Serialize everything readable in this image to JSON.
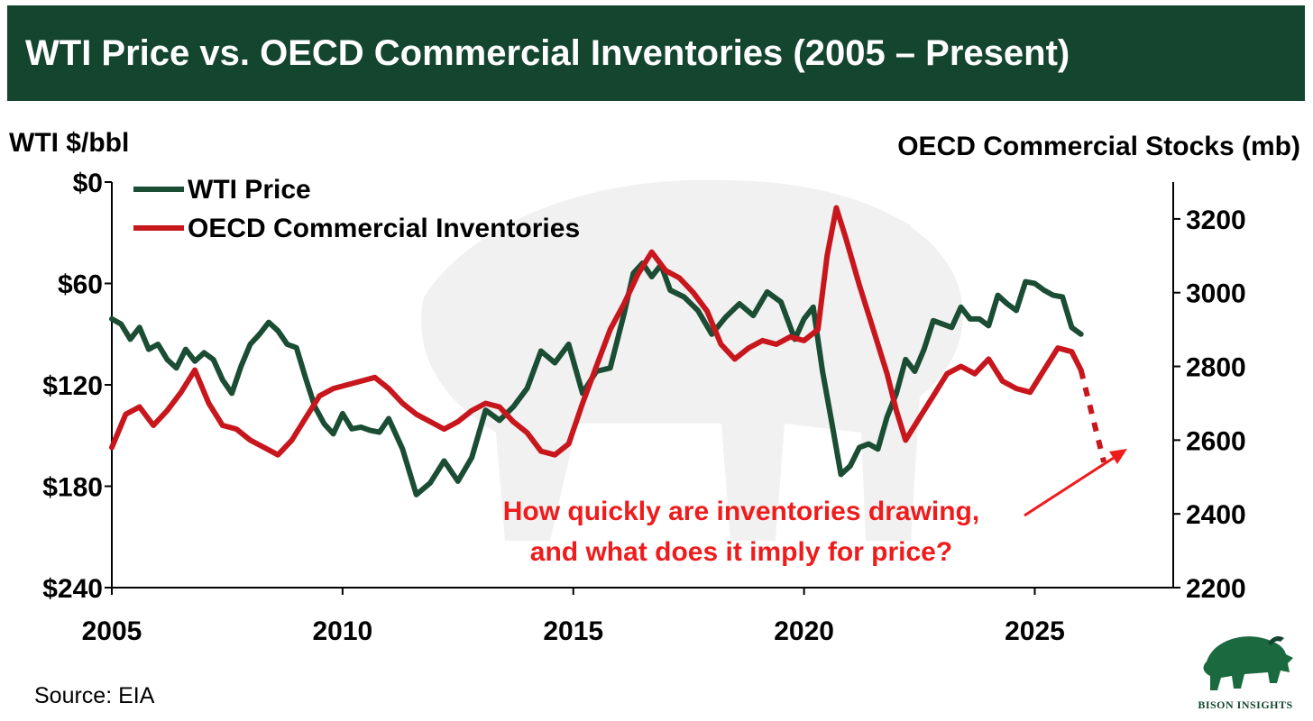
{
  "title": "WTI Price vs. OECD Commercial Inventories (2005 – Present)",
  "source": "Source: EIA",
  "logo_text": "BISON INSIGHTS",
  "colors": {
    "title_bg": "#14452f",
    "wti": "#1a4d34",
    "oecd": "#c8161d",
    "annotation": "#ee1c1c"
  },
  "chart_data": {
    "type": "line",
    "title": "WTI Price vs. OECD Commercial Inventories (2005 – Present)",
    "left_axis": {
      "label": "WTI $/bbl",
      "ticks": [
        "$0",
        "$60",
        "$120",
        "$180",
        "$240"
      ],
      "range": [
        240,
        0
      ],
      "inverted": true
    },
    "right_axis": {
      "label": "OECD Commercial Stocks (mb)",
      "ticks": [
        "2200",
        "2400",
        "2600",
        "2800",
        "3000",
        "3200"
      ],
      "range": [
        2200,
        3300
      ]
    },
    "x_axis": {
      "ticks": [
        "2005",
        "2010",
        "2015",
        "2020",
        "2025"
      ],
      "range": [
        2005,
        2028
      ]
    },
    "legend": {
      "placement": "top-left"
    },
    "series": [
      {
        "name": "WTI Price",
        "axis": "left",
        "points": [
          [
            2005.0,
            81
          ],
          [
            2005.2,
            84
          ],
          [
            2005.4,
            93
          ],
          [
            2005.6,
            86
          ],
          [
            2005.8,
            99
          ],
          [
            2006.0,
            96
          ],
          [
            2006.2,
            105
          ],
          [
            2006.4,
            110
          ],
          [
            2006.6,
            99
          ],
          [
            2006.8,
            106
          ],
          [
            2007.0,
            101
          ],
          [
            2007.2,
            105
          ],
          [
            2007.4,
            117
          ],
          [
            2007.6,
            125
          ],
          [
            2007.8,
            109
          ],
          [
            2008.0,
            96
          ],
          [
            2008.2,
            90
          ],
          [
            2008.4,
            83
          ],
          [
            2008.6,
            88
          ],
          [
            2008.8,
            96
          ],
          [
            2009.0,
            98
          ],
          [
            2009.2,
            116
          ],
          [
            2009.4,
            133
          ],
          [
            2009.6,
            143
          ],
          [
            2009.8,
            149
          ],
          [
            2010.0,
            137
          ],
          [
            2010.2,
            146
          ],
          [
            2010.4,
            145
          ],
          [
            2010.6,
            147
          ],
          [
            2010.8,
            148
          ],
          [
            2011.0,
            140
          ],
          [
            2011.3,
            158
          ],
          [
            2011.6,
            185
          ],
          [
            2011.9,
            178
          ],
          [
            2012.2,
            165
          ],
          [
            2012.5,
            177
          ],
          [
            2012.8,
            163
          ],
          [
            2013.1,
            135
          ],
          [
            2013.4,
            141
          ],
          [
            2013.7,
            133
          ],
          [
            2014.0,
            122
          ],
          [
            2014.3,
            100
          ],
          [
            2014.6,
            107
          ],
          [
            2014.9,
            96
          ],
          [
            2015.2,
            125
          ],
          [
            2015.5,
            112
          ],
          [
            2015.8,
            110
          ],
          [
            2016.1,
            78
          ],
          [
            2016.3,
            54
          ],
          [
            2016.5,
            48
          ],
          [
            2016.7,
            56
          ],
          [
            2016.9,
            49
          ],
          [
            2017.1,
            64
          ],
          [
            2017.4,
            68
          ],
          [
            2017.7,
            76
          ],
          [
            2018.0,
            90
          ],
          [
            2018.3,
            80
          ],
          [
            2018.6,
            72
          ],
          [
            2018.9,
            79
          ],
          [
            2019.2,
            65
          ],
          [
            2019.5,
            71
          ],
          [
            2019.8,
            93
          ],
          [
            2020.0,
            81
          ],
          [
            2020.2,
            74
          ],
          [
            2020.4,
            112
          ],
          [
            2020.6,
            142
          ],
          [
            2020.8,
            173
          ],
          [
            2021.0,
            168
          ],
          [
            2021.2,
            157
          ],
          [
            2021.4,
            155
          ],
          [
            2021.6,
            158
          ],
          [
            2021.8,
            139
          ],
          [
            2022.0,
            125
          ],
          [
            2022.2,
            105
          ],
          [
            2022.4,
            112
          ],
          [
            2022.6,
            99
          ],
          [
            2022.8,
            82
          ],
          [
            2023.0,
            84
          ],
          [
            2023.2,
            86
          ],
          [
            2023.4,
            74
          ],
          [
            2023.6,
            81
          ],
          [
            2023.8,
            81
          ],
          [
            2024.0,
            85
          ],
          [
            2024.2,
            67
          ],
          [
            2024.4,
            72
          ],
          [
            2024.6,
            76
          ],
          [
            2024.8,
            59
          ],
          [
            2025.0,
            60
          ],
          [
            2025.2,
            64
          ],
          [
            2025.4,
            67
          ],
          [
            2025.6,
            68
          ],
          [
            2025.8,
            86
          ],
          [
            2026.0,
            90
          ]
        ]
      },
      {
        "name": "OECD Commercial Inventories",
        "axis": "right",
        "points": [
          [
            2005.0,
            2580
          ],
          [
            2005.3,
            2670
          ],
          [
            2005.6,
            2690
          ],
          [
            2005.9,
            2640
          ],
          [
            2006.2,
            2680
          ],
          [
            2006.5,
            2730
          ],
          [
            2006.8,
            2790
          ],
          [
            2007.1,
            2700
          ],
          [
            2007.4,
            2640
          ],
          [
            2007.7,
            2630
          ],
          [
            2008.0,
            2600
          ],
          [
            2008.3,
            2580
          ],
          [
            2008.6,
            2560
          ],
          [
            2008.9,
            2600
          ],
          [
            2009.2,
            2660
          ],
          [
            2009.5,
            2720
          ],
          [
            2009.8,
            2740
          ],
          [
            2010.1,
            2750
          ],
          [
            2010.4,
            2760
          ],
          [
            2010.7,
            2770
          ],
          [
            2011.0,
            2740
          ],
          [
            2011.3,
            2700
          ],
          [
            2011.6,
            2670
          ],
          [
            2011.9,
            2650
          ],
          [
            2012.2,
            2630
          ],
          [
            2012.5,
            2650
          ],
          [
            2012.8,
            2680
          ],
          [
            2013.1,
            2700
          ],
          [
            2013.4,
            2690
          ],
          [
            2013.7,
            2650
          ],
          [
            2014.0,
            2620
          ],
          [
            2014.3,
            2570
          ],
          [
            2014.6,
            2560
          ],
          [
            2014.9,
            2590
          ],
          [
            2015.2,
            2700
          ],
          [
            2015.5,
            2800
          ],
          [
            2015.8,
            2900
          ],
          [
            2016.1,
            2970
          ],
          [
            2016.4,
            3050
          ],
          [
            2016.7,
            3110
          ],
          [
            2017.0,
            3060
          ],
          [
            2017.3,
            3040
          ],
          [
            2017.6,
            3000
          ],
          [
            2017.9,
            2950
          ],
          [
            2018.2,
            2860
          ],
          [
            2018.5,
            2820
          ],
          [
            2018.8,
            2850
          ],
          [
            2019.1,
            2870
          ],
          [
            2019.4,
            2860
          ],
          [
            2019.7,
            2880
          ],
          [
            2020.0,
            2870
          ],
          [
            2020.3,
            2900
          ],
          [
            2020.5,
            3100
          ],
          [
            2020.7,
            3230
          ],
          [
            2020.9,
            3150
          ],
          [
            2021.2,
            3020
          ],
          [
            2021.5,
            2900
          ],
          [
            2021.8,
            2780
          ],
          [
            2022.0,
            2680
          ],
          [
            2022.2,
            2600
          ],
          [
            2022.5,
            2660
          ],
          [
            2022.8,
            2720
          ],
          [
            2023.1,
            2780
          ],
          [
            2023.4,
            2800
          ],
          [
            2023.7,
            2780
          ],
          [
            2024.0,
            2820
          ],
          [
            2024.3,
            2760
          ],
          [
            2024.6,
            2740
          ],
          [
            2024.9,
            2730
          ],
          [
            2025.2,
            2790
          ],
          [
            2025.5,
            2850
          ],
          [
            2025.8,
            2840
          ],
          [
            2026.0,
            2790
          ]
        ]
      },
      {
        "name": "OECD Commercial Inventories (projection)",
        "axis": "right",
        "dashed": true,
        "points": [
          [
            2026.0,
            2790
          ],
          [
            2026.5,
            2540
          ]
        ]
      }
    ],
    "annotations": [
      {
        "lines": [
          "How quickly are inventories drawing,",
          "and what does it imply for price?"
        ],
        "arrow_to": [
          2026.3,
          2590
        ]
      }
    ]
  }
}
